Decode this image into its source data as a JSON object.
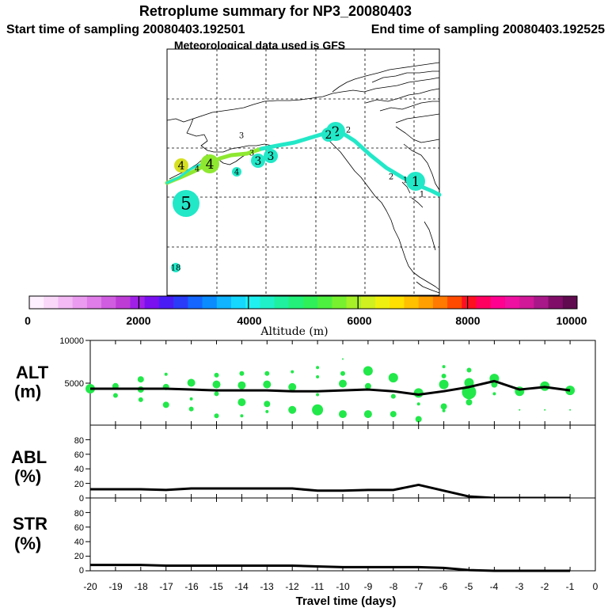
{
  "header": {
    "title": "Retroplume summary for NP3_20080403",
    "subtitle_start": "Start time of sampling 20080403.192501",
    "subtitle_end": "End time of sampling 20080403.192525",
    "met_line": "Meteorological data used is GFS"
  },
  "colorbar": {
    "label": "Altitude (m)",
    "tick_labels": [
      "0",
      "2000",
      "4000",
      "6000",
      "8000",
      "10000"
    ],
    "range": [
      0,
      10000
    ],
    "colors": [
      "#fff0ff",
      "#fad8fa",
      "#f3baf5",
      "#eb9cf0",
      "#e07de8",
      "#d05ce0",
      "#bd3cd6",
      "#a020e8",
      "#7a10f0",
      "#4a1cf5",
      "#2a3cf8",
      "#1466ff",
      "#0a8cff",
      "#10b4ff",
      "#16d8ff",
      "#20f0f0",
      "#1ff0c8",
      "#1ff0a0",
      "#22f07a",
      "#30f05a",
      "#4ef040",
      "#78f030",
      "#a6f028",
      "#d0f020",
      "#f0f010",
      "#ffe000",
      "#ffc000",
      "#ffa000",
      "#ff7a00",
      "#ff4a00",
      "#ff1020",
      "#ff0060",
      "#ff0090",
      "#ee10a0",
      "#d01898",
      "#a81888",
      "#800e68",
      "#600a50"
    ]
  },
  "map": {
    "plume_color": "#22e8c8",
    "markers": [
      {
        "label": "1",
        "size": "large",
        "color": "#22e8c8"
      },
      {
        "label": "1",
        "size": "small",
        "color": "#ffffff"
      },
      {
        "label": "1",
        "size": "small",
        "color": "#ffffff"
      },
      {
        "label": "2",
        "size": "small",
        "color": "#ffffff"
      },
      {
        "label": "2",
        "size": "large",
        "color": "#22e8c8"
      },
      {
        "label": "2",
        "size": "medium",
        "color": "#22e8c8"
      },
      {
        "label": "2",
        "size": "small",
        "color": "#ffffff"
      },
      {
        "label": "3",
        "size": "medium",
        "color": "#22e8c8"
      },
      {
        "label": "3",
        "size": "medium",
        "color": "#22e8c8"
      },
      {
        "label": "3",
        "size": "small",
        "color": "#ffffff"
      },
      {
        "label": "3",
        "size": "small",
        "color": "#ffffff"
      },
      {
        "label": "4",
        "size": "large",
        "color": "#8ee830"
      },
      {
        "label": "4",
        "size": "small",
        "color": "#ffffff"
      },
      {
        "label": "4",
        "size": "medium",
        "color": "#d6e020"
      },
      {
        "label": "4",
        "size": "small",
        "color": "#22e8c8"
      },
      {
        "label": "5",
        "size": "xlarge",
        "color": "#22e8c8"
      },
      {
        "label": "18",
        "size": "small",
        "color": "#22e8c8"
      }
    ]
  },
  "chart_data": {
    "type": "line",
    "x_label": "Travel time (days)",
    "x_range": [
      -20,
      0
    ],
    "x_tick_labels": [
      "-20",
      "-19",
      "-18",
      "-17",
      "-16",
      "-15",
      "-14",
      "-13",
      "-12",
      "-11",
      "-10",
      "-9",
      "-8",
      "-7",
      "-6",
      "-5",
      "-4",
      "-3",
      "-2",
      "-1",
      "0"
    ],
    "panels": [
      {
        "name": "ALT",
        "ylabel": "ALT",
        "yunit": "(m)",
        "ylim": [
          0,
          10000
        ],
        "ytick_labels": [
          "5000",
          "10000"
        ],
        "x": [
          -20,
          -19,
          -18,
          -17,
          -16,
          -15,
          -14,
          -13,
          -12,
          -11,
          -10,
          -9,
          -8,
          -7,
          -6,
          -5,
          -4,
          -3,
          -2,
          -1
        ],
        "line_values": [
          4300,
          4300,
          4300,
          4300,
          4200,
          4100,
          4100,
          4100,
          4000,
          4000,
          4100,
          4200,
          4000,
          3600,
          4000,
          4500,
          5200,
          4200,
          4500,
          4100
        ],
        "scatter_color": "#22e84a",
        "scatter": [
          {
            "x": -20,
            "y": 4300,
            "r": 6
          },
          {
            "x": -19,
            "y": 4600,
            "r": 4
          },
          {
            "x": -19,
            "y": 3500,
            "r": 3
          },
          {
            "x": -18,
            "y": 5400,
            "r": 4
          },
          {
            "x": -18,
            "y": 4200,
            "r": 4
          },
          {
            "x": -18,
            "y": 3000,
            "r": 3
          },
          {
            "x": -17,
            "y": 6000,
            "r": 2
          },
          {
            "x": -17,
            "y": 4500,
            "r": 4
          },
          {
            "x": -17,
            "y": 2400,
            "r": 4
          },
          {
            "x": -16,
            "y": 5000,
            "r": 5
          },
          {
            "x": -16,
            "y": 3100,
            "r": 2
          },
          {
            "x": -16,
            "y": 1900,
            "r": 3
          },
          {
            "x": -15,
            "y": 5900,
            "r": 3
          },
          {
            "x": -15,
            "y": 4800,
            "r": 5
          },
          {
            "x": -15,
            "y": 3700,
            "r": 3
          },
          {
            "x": -15,
            "y": 1100,
            "r": 3
          },
          {
            "x": -14,
            "y": 6100,
            "r": 3
          },
          {
            "x": -14,
            "y": 4700,
            "r": 5
          },
          {
            "x": -14,
            "y": 2700,
            "r": 5
          },
          {
            "x": -14,
            "y": 1100,
            "r": 2
          },
          {
            "x": -13,
            "y": 6100,
            "r": 3
          },
          {
            "x": -13,
            "y": 4800,
            "r": 5
          },
          {
            "x": -13,
            "y": 2500,
            "r": 4
          },
          {
            "x": -13,
            "y": 1600,
            "r": 2
          },
          {
            "x": -12,
            "y": 6300,
            "r": 2
          },
          {
            "x": -12,
            "y": 4500,
            "r": 5
          },
          {
            "x": -12,
            "y": 1800,
            "r": 5
          },
          {
            "x": -11,
            "y": 6800,
            "r": 2
          },
          {
            "x": -11,
            "y": 5700,
            "r": 2
          },
          {
            "x": -11,
            "y": 3600,
            "r": 2
          },
          {
            "x": -11,
            "y": 1800,
            "r": 7
          },
          {
            "x": -10,
            "y": 7800,
            "r": 1
          },
          {
            "x": -10,
            "y": 6100,
            "r": 3
          },
          {
            "x": -10,
            "y": 4900,
            "r": 5
          },
          {
            "x": -10,
            "y": 1300,
            "r": 5
          },
          {
            "x": -9,
            "y": 6400,
            "r": 6
          },
          {
            "x": -9,
            "y": 4600,
            "r": 4
          },
          {
            "x": -9,
            "y": 1300,
            "r": 5
          },
          {
            "x": -8,
            "y": 5600,
            "r": 6
          },
          {
            "x": -8,
            "y": 3400,
            "r": 3
          },
          {
            "x": -8,
            "y": 1300,
            "r": 4
          },
          {
            "x": -7,
            "y": 3800,
            "r": 6
          },
          {
            "x": -7,
            "y": 2500,
            "r": 2
          },
          {
            "x": -7,
            "y": 700,
            "r": 4
          },
          {
            "x": -6,
            "y": 6900,
            "r": 2
          },
          {
            "x": -6,
            "y": 5800,
            "r": 3
          },
          {
            "x": -6,
            "y": 4800,
            "r": 6
          },
          {
            "x": -6,
            "y": 2200,
            "r": 4
          },
          {
            "x": -6,
            "y": 1700,
            "r": 2
          },
          {
            "x": -5,
            "y": 6500,
            "r": 3
          },
          {
            "x": -5,
            "y": 5000,
            "r": 6
          },
          {
            "x": -5,
            "y": 3900,
            "r": 9
          },
          {
            "x": -5,
            "y": 2700,
            "r": 4
          },
          {
            "x": -4,
            "y": 5500,
            "r": 6
          },
          {
            "x": -4,
            "y": 4800,
            "r": 4
          },
          {
            "x": -4,
            "y": 3700,
            "r": 2
          },
          {
            "x": -3,
            "y": 4000,
            "r": 6
          },
          {
            "x": -3,
            "y": 1800,
            "r": 1
          },
          {
            "x": -2,
            "y": 4600,
            "r": 6
          },
          {
            "x": -2,
            "y": 1800,
            "r": 1
          },
          {
            "x": -1,
            "y": 4100,
            "r": 6
          },
          {
            "x": -1,
            "y": 1800,
            "r": 1
          }
        ]
      },
      {
        "name": "ABL",
        "ylabel": "ABL",
        "yunit": "(%)",
        "ylim": [
          0,
          100
        ],
        "ytick_labels": [
          "0",
          "20",
          "40",
          "60",
          "80"
        ],
        "x": [
          -20,
          -19,
          -18,
          -17,
          -16,
          -15,
          -14,
          -13,
          -12,
          -11,
          -10,
          -9,
          -8,
          -7,
          -6,
          -5,
          -4,
          -3,
          -2,
          -1
        ],
        "line_values": [
          12,
          12,
          12,
          11,
          13,
          13,
          13,
          13,
          13,
          10,
          10,
          11,
          11,
          18,
          10,
          2,
          0,
          0,
          0,
          0
        ]
      },
      {
        "name": "STR",
        "ylabel": "STR",
        "yunit": "(%)",
        "ylim": [
          0,
          100
        ],
        "ytick_labels": [
          "0",
          "20",
          "40",
          "60",
          "80"
        ],
        "x": [
          -20,
          -19,
          -18,
          -17,
          -16,
          -15,
          -14,
          -13,
          -12,
          -11,
          -10,
          -9,
          -8,
          -7,
          -6,
          -5,
          -4,
          -3,
          -2,
          -1
        ],
        "line_values": [
          8,
          8,
          8,
          7,
          7,
          7,
          7,
          7,
          7,
          6,
          5,
          5,
          5,
          5,
          4,
          1,
          0,
          0,
          0,
          0
        ]
      }
    ]
  }
}
